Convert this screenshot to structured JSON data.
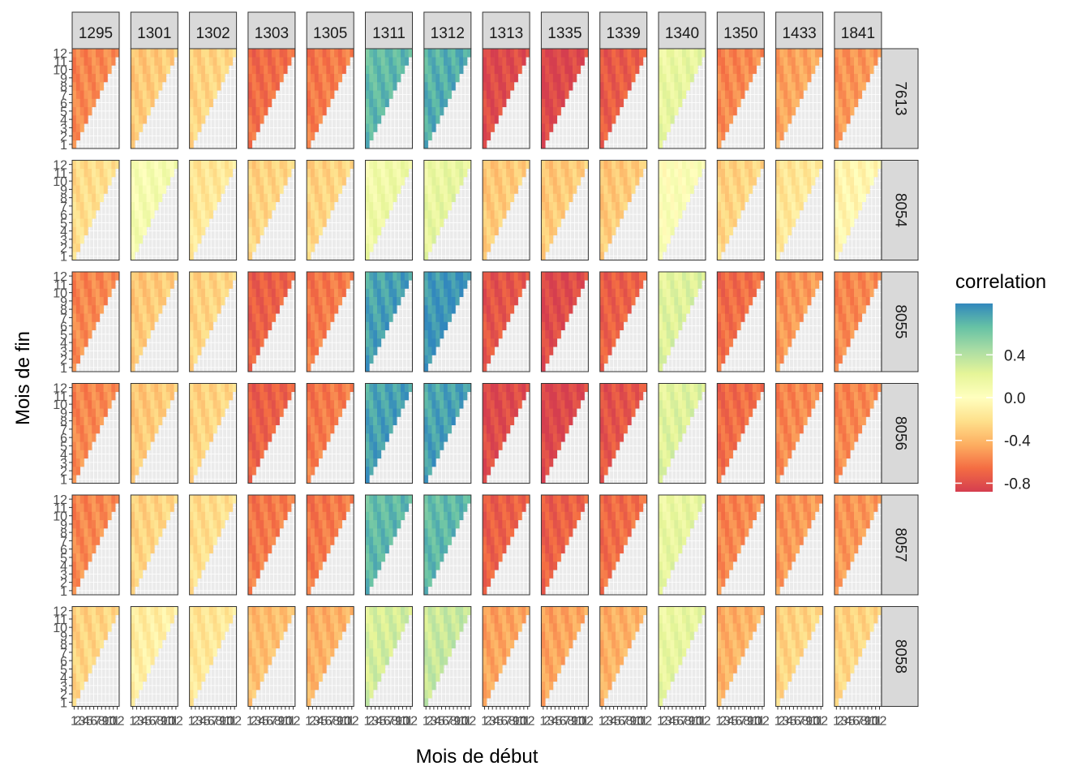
{
  "chart_data": {
    "type": "heatmap",
    "title": "",
    "xlabel": "Mois de début",
    "ylabel": "Mois de fin",
    "legend": {
      "title": "correlation",
      "position": "right",
      "ticks": [
        0.4,
        0.0,
        -0.4,
        -0.8
      ],
      "tick_labels": [
        "0.4",
        "0.0",
        "-0.4",
        "-0.8"
      ],
      "range": [
        -0.88,
        0.88
      ]
    },
    "color_scale": [
      "#d53e4f",
      "#f46d43",
      "#fdae61",
      "#fee08b",
      "#ffffbf",
      "#e6f598",
      "#abdda4",
      "#66c2a5",
      "#3288bd"
    ],
    "axis_ticks": {
      "x": [
        "1",
        "2",
        "3",
        "4",
        "5",
        "6",
        "7",
        "8",
        "9",
        "10",
        "11",
        "12"
      ],
      "y": [
        "1",
        "2",
        "3",
        "4",
        "5",
        "6",
        "7",
        "8",
        "9",
        "10",
        "11",
        "12"
      ]
    },
    "panel_columns": [
      "1295",
      "1301",
      "1302",
      "1303",
      "1305",
      "1311",
      "1312",
      "1313",
      "1335",
      "1339",
      "1340",
      "1350",
      "1433",
      "1841"
    ],
    "panel_rows": [
      "7613",
      "8054",
      "8055",
      "8056",
      "8057",
      "8058"
    ],
    "cell_rule": "cells drawn only where Mois de fin >= Mois de début",
    "approx_mean_correlation": [
      [
        -0.55,
        -0.3,
        -0.25,
        -0.65,
        -0.6,
        0.7,
        0.75,
        -0.8,
        -0.82,
        -0.72,
        0.2,
        -0.55,
        -0.45,
        -0.5
      ],
      [
        -0.2,
        0.1,
        -0.15,
        -0.25,
        -0.25,
        0.15,
        0.2,
        -0.3,
        -0.3,
        -0.3,
        0.05,
        -0.25,
        -0.15,
        -0.05
      ],
      [
        -0.55,
        -0.3,
        -0.25,
        -0.7,
        -0.6,
        0.8,
        0.85,
        -0.75,
        -0.8,
        -0.7,
        0.25,
        -0.65,
        -0.5,
        -0.55
      ],
      [
        -0.55,
        -0.3,
        -0.25,
        -0.7,
        -0.6,
        0.8,
        0.8,
        -0.8,
        -0.82,
        -0.75,
        0.25,
        -0.65,
        -0.55,
        -0.55
      ],
      [
        -0.55,
        -0.25,
        -0.2,
        -0.6,
        -0.6,
        0.7,
        0.7,
        -0.7,
        -0.7,
        -0.65,
        0.2,
        -0.55,
        -0.5,
        -0.5
      ],
      [
        -0.25,
        -0.1,
        -0.15,
        -0.35,
        -0.4,
        0.3,
        0.35,
        -0.45,
        -0.45,
        -0.4,
        0.2,
        -0.4,
        -0.25,
        -0.25
      ]
    ]
  }
}
